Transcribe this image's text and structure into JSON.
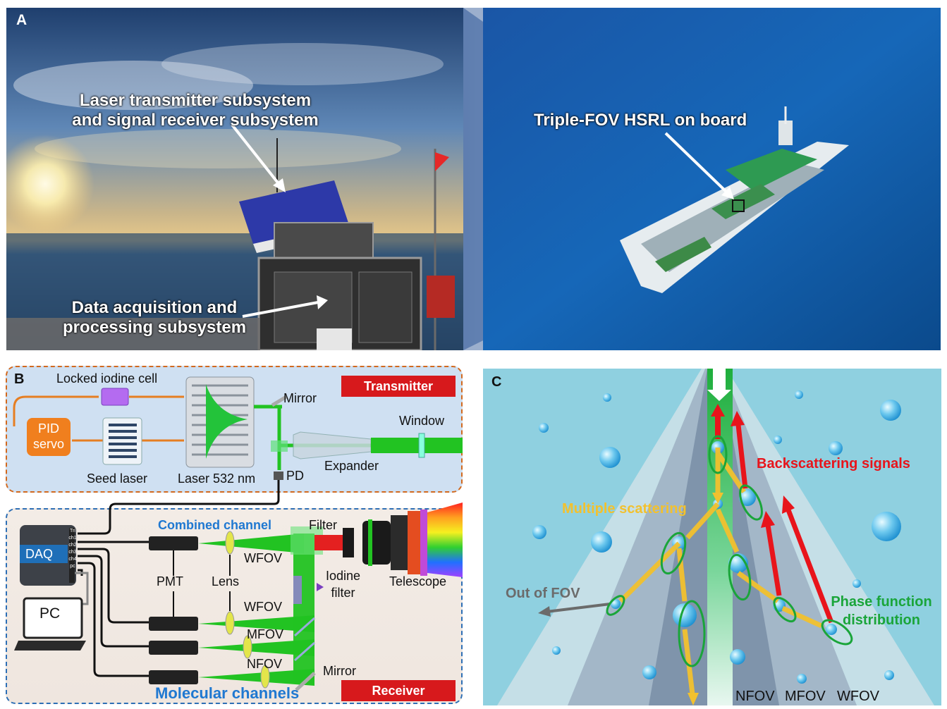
{
  "panel_a": {
    "letter": "A",
    "label_transmitter_receiver_line1": "Laser transmitter subsystem",
    "label_transmitter_receiver_line2": "and signal receiver subsystem",
    "label_daq_line1": "Data acquisition and",
    "label_daq_line2": "processing subsystem",
    "label_ship": "Triple-FOV HSRL on board"
  },
  "panel_b": {
    "letter": "B",
    "transmitter_tag": "Transmitter",
    "receiver_tag": "Receiver",
    "locked_iodine_cell": "Locked iodine cell",
    "pid_line1": "PID",
    "pid_line2": "servo",
    "seed_laser": "Seed laser",
    "laser": "Laser 532 nm",
    "mirror_top": "Mirror",
    "window": "Window",
    "expander": "Expander",
    "pd": "PD",
    "daq": "DAQ",
    "daq_ports": [
      "Tri",
      "ch1",
      "ch2",
      "ch3",
      "ch4",
      "pc"
    ],
    "pc": "PC",
    "combined_channel": "Combined channel",
    "filter": "Filter",
    "wfov_1": "WFOV",
    "iodine_filter_line1": "Iodine",
    "iodine_filter_line2": "filter",
    "telescope": "Telescope",
    "pmt": "PMT",
    "lens": "Lens",
    "wfov_2": "WFOV",
    "mfov": "MFOV",
    "nfov": "NFOV",
    "mirror_bottom": "Mirror",
    "molecular_channels": "Molecular channels"
  },
  "panel_c": {
    "letter": "C",
    "backscattering": "Backscattering signals",
    "multiple_scattering": "Multiple scattering",
    "out_of_fov": "Out of FOV",
    "phase_line1": "Phase function",
    "phase_line2": "distribution",
    "nfov": "NFOV",
    "mfov": "MFOV",
    "wfov": "WFOV"
  },
  "colors": {
    "transmitter_border": "#d2691e",
    "receiver_border": "#2e6fb5",
    "tag_red": "#d7191c",
    "beam_green": "#22c322",
    "cable_orange": "#e67e22",
    "pid_orange": "#f07f1e",
    "channel_blue": "#1f78d1",
    "backscatter_red": "#e8141b",
    "multiple_yellow": "#f2c12e",
    "phase_green": "#1aa53a",
    "water_blue": "#8fd0e0"
  }
}
